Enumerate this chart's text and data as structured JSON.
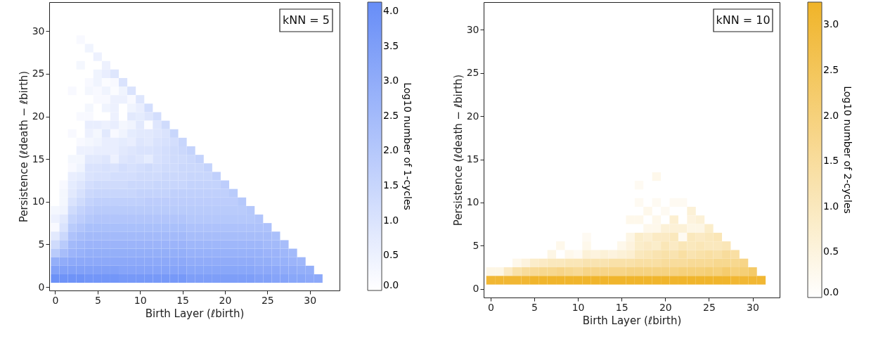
{
  "chart_data": [
    {
      "type": "heatmap",
      "xlabel": "Birth Layer (ℓbirth)",
      "ylabel": "Persistence (ℓdeath − ℓbirth)",
      "clabel": "Log10 number of 1-cycles",
      "annotations": [
        "kNN = 5"
      ],
      "colors": [
        "#ffffff",
        "#678df7"
      ],
      "clim": [
        0,
        4.13
      ],
      "cticks": [
        {
          "value": 0,
          "label": "0.0"
        },
        0.5,
        {
          "value": 1,
          "label": "1.0"
        },
        1.5,
        {
          "value": 2,
          "label": "2.0"
        },
        2.5,
        {
          "value": 3,
          "label": "3.0"
        },
        3.5,
        {
          "value": 4,
          "label": "4.0"
        }
      ],
      "xlim": [
        -0.7,
        33.5
      ],
      "ylim": [
        -0.4,
        33.4
      ],
      "xticks": [
        0,
        5,
        10,
        15,
        20,
        25,
        30
      ],
      "yticks": [
        0,
        5,
        10,
        15,
        20,
        25,
        30
      ],
      "x": [
        0,
        1,
        2,
        3,
        4,
        5,
        6,
        7,
        8,
        9,
        10,
        11,
        12,
        13,
        14,
        15,
        16,
        17,
        18,
        19,
        20,
        21,
        22,
        23,
        24,
        25,
        26,
        27,
        28,
        29,
        30,
        31
      ],
      "y": [
        29,
        28,
        27,
        26,
        25,
        24,
        23,
        22,
        21,
        20,
        19,
        18,
        17,
        16,
        15,
        14,
        13,
        12,
        11,
        10,
        9,
        8,
        7,
        6,
        5,
        4,
        3,
        2,
        1
      ],
      "cells": [
        [
          null,
          null,
          null,
          0.2,
          null,
          null,
          null,
          null,
          null,
          null,
          null,
          null,
          null,
          null,
          null,
          null,
          null,
          null,
          null,
          null,
          null,
          null,
          null,
          null,
          null,
          null,
          null,
          null,
          null,
          null,
          null,
          null
        ],
        [
          null,
          null,
          null,
          null,
          0.4,
          null,
          null,
          null,
          null,
          null,
          null,
          null,
          null,
          null,
          null,
          null,
          null,
          null,
          null,
          null,
          null,
          null,
          null,
          null,
          null,
          null,
          null,
          null,
          null,
          null,
          null,
          null
        ],
        [
          null,
          null,
          null,
          null,
          null,
          0.5,
          null,
          null,
          null,
          null,
          null,
          null,
          null,
          null,
          null,
          null,
          null,
          null,
          null,
          null,
          null,
          null,
          null,
          null,
          null,
          null,
          null,
          null,
          null,
          null,
          null,
          null
        ],
        [
          null,
          null,
          null,
          0.3,
          null,
          null,
          0.5,
          null,
          null,
          null,
          null,
          null,
          null,
          null,
          null,
          null,
          null,
          null,
          null,
          null,
          null,
          null,
          null,
          null,
          null,
          null,
          null,
          null,
          null,
          null,
          null,
          null
        ],
        [
          null,
          null,
          null,
          null,
          null,
          0.4,
          0.6,
          0.9,
          null,
          null,
          null,
          null,
          null,
          null,
          null,
          null,
          null,
          null,
          null,
          null,
          null,
          null,
          null,
          null,
          null,
          null,
          null,
          null,
          null,
          null,
          null,
          null
        ],
        [
          null,
          null,
          null,
          null,
          0.2,
          0.4,
          0.1,
          0.2,
          1.0,
          null,
          null,
          null,
          null,
          null,
          null,
          null,
          null,
          null,
          null,
          null,
          null,
          null,
          null,
          null,
          null,
          null,
          null,
          null,
          null,
          null,
          null,
          null
        ],
        [
          null,
          null,
          0.2,
          null,
          0.3,
          0.2,
          0.4,
          0.1,
          0.4,
          1.0,
          null,
          null,
          null,
          null,
          null,
          null,
          null,
          null,
          null,
          null,
          null,
          null,
          null,
          null,
          null,
          null,
          null,
          null,
          null,
          null,
          null,
          null
        ],
        [
          null,
          null,
          null,
          null,
          null,
          0.2,
          0.2,
          0.5,
          0.5,
          0.2,
          0.9,
          null,
          null,
          null,
          null,
          null,
          null,
          null,
          null,
          null,
          null,
          null,
          null,
          null,
          null,
          null,
          null,
          null,
          null,
          null,
          null,
          null
        ],
        [
          null,
          null,
          null,
          null,
          0.3,
          null,
          0.4,
          0.5,
          null,
          0.4,
          0.6,
          1.2,
          null,
          null,
          null,
          null,
          null,
          null,
          null,
          null,
          null,
          null,
          null,
          null,
          null,
          null,
          null,
          null,
          null,
          null,
          null,
          null
        ],
        [
          null,
          null,
          null,
          0.2,
          0.2,
          null,
          null,
          0.5,
          null,
          0.8,
          0.7,
          0.9,
          1.2,
          null,
          null,
          null,
          null,
          null,
          null,
          null,
          null,
          null,
          null,
          null,
          null,
          null,
          null,
          null,
          null,
          null,
          null,
          null
        ],
        [
          null,
          null,
          null,
          null,
          0.6,
          0.6,
          0.5,
          0.6,
          0.3,
          0.4,
          0.8,
          0.1,
          0.9,
          1.3,
          null,
          null,
          null,
          null,
          null,
          null,
          null,
          null,
          null,
          null,
          null,
          null,
          null,
          null,
          null,
          null,
          null,
          null
        ],
        [
          null,
          null,
          0.2,
          null,
          0.5,
          0.3,
          0.8,
          0.2,
          0.4,
          0.7,
          0.8,
          0.8,
          0.9,
          1.0,
          1.5,
          null,
          null,
          null,
          null,
          null,
          null,
          null,
          null,
          null,
          null,
          null,
          null,
          null,
          null,
          null,
          null,
          null
        ],
        [
          null,
          null,
          null,
          0.2,
          0.3,
          0.4,
          0.6,
          0.6,
          0.7,
          0.6,
          0.9,
          0.8,
          1.0,
          1.1,
          1.2,
          1.5,
          null,
          null,
          null,
          null,
          null,
          null,
          null,
          null,
          null,
          null,
          null,
          null,
          null,
          null,
          null,
          null
        ],
        [
          null,
          null,
          null,
          0.5,
          0.5,
          0.6,
          0.6,
          0.6,
          0.8,
          0.9,
          1.0,
          1.0,
          1.1,
          1.2,
          1.3,
          1.4,
          1.6,
          null,
          null,
          null,
          null,
          null,
          null,
          null,
          null,
          null,
          null,
          null,
          null,
          null,
          null,
          null
        ],
        [
          null,
          null,
          0.3,
          0.3,
          0.8,
          0.8,
          0.9,
          0.5,
          0.9,
          1.0,
          0.9,
          0.7,
          1.1,
          1.2,
          1.3,
          1.3,
          1.4,
          1.6,
          null,
          null,
          null,
          null,
          null,
          null,
          null,
          null,
          null,
          null,
          null,
          null,
          null,
          null
        ],
        [
          null,
          null,
          0.2,
          0.4,
          1.0,
          1.0,
          1.1,
          1.0,
          1.2,
          1.1,
          1.2,
          1.3,
          1.2,
          1.3,
          1.3,
          1.4,
          1.4,
          1.4,
          1.6,
          null,
          null,
          null,
          null,
          null,
          null,
          null,
          null,
          null,
          null,
          null,
          null,
          null
        ],
        [
          null,
          null,
          0.6,
          0.7,
          1.0,
          1.1,
          1.1,
          1.2,
          1.2,
          1.2,
          1.3,
          1.3,
          1.3,
          1.4,
          1.4,
          1.4,
          1.5,
          1.5,
          1.5,
          1.7,
          null,
          null,
          null,
          null,
          null,
          null,
          null,
          null,
          null,
          null,
          null,
          null
        ],
        [
          null,
          0.2,
          0.7,
          0.9,
          1.2,
          1.3,
          1.3,
          1.3,
          1.3,
          1.4,
          1.4,
          1.4,
          1.5,
          1.5,
          1.5,
          1.5,
          1.6,
          1.6,
          1.6,
          1.6,
          1.8,
          null,
          null,
          null,
          null,
          null,
          null,
          null,
          null,
          null,
          null,
          null
        ],
        [
          null,
          0.3,
          0.8,
          1.1,
          1.4,
          1.5,
          1.5,
          1.5,
          1.5,
          1.5,
          1.6,
          1.6,
          1.6,
          1.6,
          1.7,
          1.7,
          1.7,
          1.7,
          1.7,
          1.7,
          1.7,
          1.9,
          null,
          null,
          null,
          null,
          null,
          null,
          null,
          null,
          null,
          null
        ],
        [
          null,
          0.3,
          1.0,
          1.3,
          1.6,
          1.7,
          1.7,
          1.7,
          1.7,
          1.7,
          1.7,
          1.8,
          1.8,
          1.8,
          1.8,
          1.8,
          1.8,
          1.8,
          1.8,
          1.8,
          1.8,
          1.8,
          2.0,
          null,
          null,
          null,
          null,
          null,
          null,
          null,
          null,
          null
        ],
        [
          0.3,
          0.4,
          1.3,
          1.6,
          1.8,
          1.9,
          1.9,
          1.9,
          1.9,
          1.9,
          1.9,
          1.9,
          1.9,
          1.9,
          1.9,
          1.9,
          1.9,
          1.9,
          1.9,
          1.9,
          1.9,
          1.9,
          1.9,
          2.0,
          null,
          null,
          null,
          null,
          null,
          null,
          null,
          null
        ],
        [
          0.5,
          0.8,
          1.6,
          1.8,
          2.0,
          2.1,
          2.1,
          2.1,
          2.1,
          2.1,
          2.1,
          2.1,
          2.1,
          2.1,
          2.1,
          2.1,
          2.0,
          2.0,
          2.0,
          2.0,
          2.0,
          2.0,
          2.0,
          2.0,
          2.1,
          null,
          null,
          null,
          null,
          null,
          null,
          null
        ],
        [
          0.2,
          1.0,
          1.9,
          2.1,
          2.3,
          2.3,
          2.3,
          2.3,
          2.3,
          2.3,
          2.3,
          2.3,
          2.3,
          2.3,
          2.3,
          2.3,
          2.2,
          2.2,
          2.2,
          2.2,
          2.2,
          2.2,
          2.2,
          2.2,
          2.2,
          2.2,
          null,
          null,
          null,
          null,
          null,
          null
        ],
        [
          0.8,
          1.4,
          2.2,
          2.4,
          2.5,
          2.5,
          2.5,
          2.5,
          2.5,
          2.5,
          2.5,
          2.5,
          2.5,
          2.5,
          2.5,
          2.5,
          2.4,
          2.4,
          2.4,
          2.4,
          2.4,
          2.4,
          2.4,
          2.4,
          2.4,
          2.4,
          2.3,
          null,
          null,
          null,
          null,
          null
        ],
        [
          1.3,
          1.9,
          2.5,
          2.6,
          2.7,
          2.7,
          2.7,
          2.7,
          2.7,
          2.7,
          2.7,
          2.7,
          2.7,
          2.7,
          2.7,
          2.7,
          2.6,
          2.6,
          2.6,
          2.6,
          2.6,
          2.6,
          2.6,
          2.6,
          2.6,
          2.5,
          2.5,
          2.4,
          null,
          null,
          null,
          null
        ],
        [
          1.9,
          2.4,
          2.7,
          2.8,
          2.9,
          2.9,
          2.9,
          2.9,
          2.9,
          2.9,
          2.9,
          2.9,
          2.9,
          2.9,
          2.9,
          2.9,
          2.8,
          2.8,
          2.8,
          2.8,
          2.8,
          2.8,
          2.8,
          2.8,
          2.8,
          2.7,
          2.7,
          2.6,
          2.5,
          null,
          null,
          null
        ],
        [
          2.9,
          3.0,
          3.1,
          3.1,
          3.1,
          3.1,
          3.1,
          3.1,
          3.1,
          3.1,
          3.1,
          3.1,
          3.1,
          3.1,
          3.1,
          3.1,
          3.0,
          3.0,
          3.0,
          3.0,
          3.0,
          3.0,
          3.0,
          3.0,
          2.9,
          2.9,
          2.8,
          2.8,
          2.7,
          2.6,
          null,
          null
        ],
        [
          3.4,
          3.4,
          3.4,
          3.4,
          3.4,
          3.4,
          3.4,
          3.4,
          3.3,
          3.3,
          3.3,
          3.3,
          3.3,
          3.3,
          3.3,
          3.3,
          3.2,
          3.2,
          3.2,
          3.2,
          3.2,
          3.2,
          3.2,
          3.2,
          3.1,
          3.1,
          3.1,
          3.0,
          3.0,
          2.9,
          2.9,
          null
        ],
        [
          4.0,
          3.9,
          3.9,
          3.9,
          3.8,
          3.8,
          3.8,
          3.8,
          3.7,
          3.7,
          3.7,
          3.7,
          3.7,
          3.7,
          3.7,
          3.7,
          3.5,
          3.5,
          3.5,
          3.5,
          3.5,
          3.5,
          3.5,
          3.5,
          3.4,
          3.4,
          3.3,
          3.3,
          3.2,
          3.2,
          3.1,
          3.1
        ]
      ]
    },
    {
      "type": "heatmap",
      "xlabel": "Birth Layer (ℓbirth)",
      "ylabel": "Persistence (ℓdeath − ℓbirth)",
      "clabel": "Log10 number of 2-cycles",
      "annotations": [
        "kNN = 10"
      ],
      "colors": [
        "#ffffff",
        "#f0b429"
      ],
      "clim": [
        0,
        3.25
      ],
      "cticks": [
        {
          "value": 0,
          "label": "0.0"
        },
        0.5,
        {
          "value": 1,
          "label": "1.0"
        },
        1.5,
        {
          "value": 2,
          "label": "2.0"
        },
        2.5,
        {
          "value": 3,
          "label": "3.0"
        }
      ],
      "xlim": [
        -0.8,
        33.1
      ],
      "ylim": [
        -1.0,
        33.2
      ],
      "xticks": [
        0,
        5,
        10,
        15,
        20,
        25,
        30
      ],
      "yticks": [
        0,
        5,
        10,
        15,
        20,
        25,
        30
      ],
      "x": [
        0,
        1,
        2,
        3,
        4,
        5,
        6,
        7,
        8,
        9,
        10,
        11,
        12,
        13,
        14,
        15,
        16,
        17,
        18,
        19,
        20,
        21,
        22,
        23,
        24,
        25,
        26,
        27,
        28,
        29,
        30,
        31
      ],
      "y": [
        13,
        12,
        10,
        9,
        8,
        7,
        6,
        5,
        4,
        3,
        2,
        1
      ],
      "cells": [
        [
          null,
          null,
          null,
          null,
          null,
          null,
          null,
          null,
          null,
          null,
          null,
          null,
          null,
          null,
          null,
          null,
          null,
          null,
          null,
          0.3,
          null,
          null,
          null,
          null,
          null,
          null,
          null,
          null,
          null,
          null,
          null,
          null
        ],
        [
          null,
          null,
          null,
          null,
          null,
          null,
          null,
          null,
          null,
          null,
          null,
          null,
          null,
          null,
          null,
          null,
          null,
          0.2,
          null,
          null,
          null,
          null,
          null,
          null,
          null,
          null,
          null,
          null,
          null,
          null,
          null,
          null
        ],
        [
          null,
          null,
          null,
          null,
          null,
          null,
          null,
          null,
          null,
          null,
          null,
          null,
          null,
          null,
          null,
          null,
          null,
          0.2,
          null,
          0.2,
          null,
          0.2,
          0.2,
          null,
          null,
          null,
          null,
          null,
          null,
          null,
          null,
          null
        ],
        [
          null,
          null,
          null,
          null,
          null,
          null,
          null,
          null,
          null,
          null,
          null,
          null,
          null,
          null,
          null,
          null,
          null,
          null,
          0.3,
          null,
          0.2,
          null,
          null,
          0.6,
          null,
          null,
          null,
          null,
          null,
          null,
          null,
          null
        ],
        [
          null,
          null,
          null,
          null,
          null,
          null,
          null,
          null,
          null,
          null,
          null,
          null,
          null,
          null,
          null,
          null,
          0.3,
          0.3,
          null,
          0.3,
          null,
          0.7,
          null,
          0.5,
          0.6,
          null,
          null,
          null,
          null,
          null,
          null,
          null
        ],
        [
          null,
          null,
          null,
          null,
          null,
          null,
          null,
          null,
          null,
          null,
          null,
          null,
          null,
          null,
          null,
          null,
          null,
          null,
          0.3,
          0.3,
          0.6,
          0.6,
          0.6,
          0.4,
          0.4,
          0.8,
          null,
          null,
          null,
          null,
          null,
          null
        ],
        [
          null,
          null,
          null,
          null,
          null,
          null,
          null,
          null,
          null,
          null,
          null,
          0.2,
          null,
          null,
          null,
          null,
          0.4,
          0.8,
          0.7,
          0.9,
          0.9,
          1.0,
          0.2,
          1.0,
          0.9,
          1.0,
          1.1,
          null,
          null,
          null,
          null,
          null
        ],
        [
          null,
          null,
          null,
          null,
          null,
          null,
          null,
          null,
          0.3,
          null,
          null,
          0.3,
          null,
          null,
          null,
          0.3,
          0.5,
          0.8,
          0.9,
          0.8,
          1.1,
          0.9,
          1.1,
          1.0,
          1.1,
          1.0,
          1.0,
          1.1,
          null,
          null,
          null,
          null
        ],
        [
          null,
          null,
          null,
          null,
          null,
          null,
          null,
          0.4,
          null,
          0.3,
          0.2,
          0.6,
          0.5,
          0.6,
          0.5,
          0.6,
          0.7,
          1.0,
          1.1,
          1.2,
          1.3,
          1.2,
          1.4,
          1.2,
          1.3,
          1.4,
          1.3,
          1.5,
          1.4,
          null,
          null,
          null
        ],
        [
          null,
          null,
          null,
          0.3,
          0.5,
          0.8,
          0.9,
          1.0,
          1.0,
          1.1,
          1.1,
          1.2,
          1.2,
          1.2,
          1.3,
          1.3,
          1.3,
          1.4,
          1.4,
          1.4,
          1.5,
          1.5,
          1.5,
          1.6,
          1.6,
          1.6,
          1.7,
          1.7,
          1.7,
          1.8,
          null,
          null
        ],
        [
          0.4,
          0.4,
          0.9,
          1.3,
          1.5,
          1.6,
          1.7,
          1.7,
          1.8,
          1.7,
          1.6,
          1.8,
          1.8,
          1.8,
          1.8,
          1.8,
          1.9,
          1.9,
          1.9,
          1.9,
          1.9,
          1.9,
          2.0,
          2.0,
          2.0,
          2.1,
          2.0,
          2.2,
          2.0,
          2.1,
          2.3,
          null
        ],
        [
          3.1,
          3.1,
          3.1,
          3.1,
          3.1,
          3.2,
          3.2,
          3.2,
          3.2,
          3.2,
          3.2,
          3.2,
          3.2,
          3.2,
          3.2,
          3.2,
          3.2,
          3.2,
          3.2,
          3.2,
          3.2,
          3.2,
          3.2,
          3.2,
          3.2,
          3.2,
          3.2,
          3.2,
          3.1,
          3.1,
          3.1,
          3.1
        ]
      ]
    }
  ]
}
